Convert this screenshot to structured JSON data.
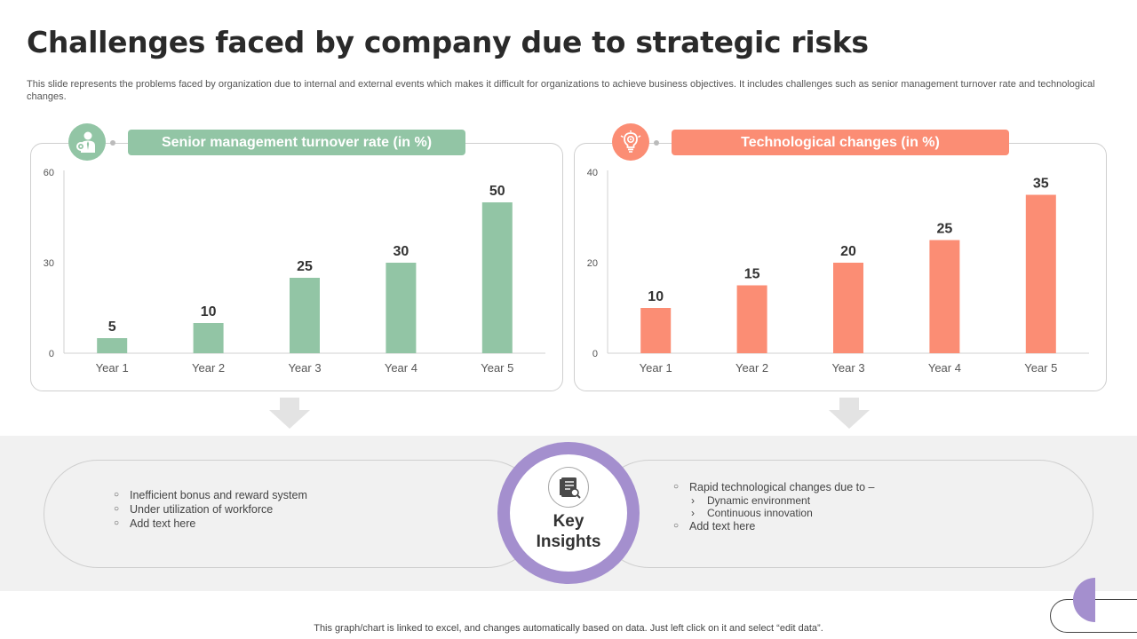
{
  "title": "Challenges faced by company due to strategic risks",
  "description": "This slide represents the problems faced by organization due to internal and external events which makes it difficult for organizations to achieve business objectives. It includes challenges such as senior management turnover rate and technological changes.",
  "colors": {
    "green": "#92c5a5",
    "orange": "#fb8d74",
    "purple": "#a48fce",
    "band": "#f1f1f1"
  },
  "left_panel": {
    "banner": "Senior management turnover rate (in %)",
    "icon": "business-person-gear-icon"
  },
  "right_panel": {
    "banner": "Technological changes (in %)",
    "icon": "lightbulb-gear-icon"
  },
  "chart_data": [
    {
      "type": "bar",
      "title": "Senior management turnover rate (in %)",
      "categories": [
        "Year 1",
        "Year 2",
        "Year 3",
        "Year 4",
        "Year 5"
      ],
      "values": [
        5,
        10,
        25,
        30,
        50
      ],
      "yticks": [
        0,
        30,
        60
      ],
      "ylim": [
        0,
        60
      ],
      "color": "#92c5a5",
      "grid": false,
      "data_labels": true
    },
    {
      "type": "bar",
      "title": "Technological changes (in %)",
      "categories": [
        "Year 1",
        "Year 2",
        "Year 3",
        "Year 4",
        "Year 5"
      ],
      "values": [
        10,
        15,
        20,
        25,
        35
      ],
      "yticks": [
        0,
        20,
        40
      ],
      "ylim": [
        0,
        40
      ],
      "color": "#fb8d74",
      "grid": false,
      "data_labels": true
    }
  ],
  "insights": {
    "center_label_line1": "Key",
    "center_label_line2": "Insights",
    "center_icon": "report-document-icon",
    "left_items": [
      "Inefficient  bonus  and reward  system",
      "Under utilization of workforce",
      "Add text here"
    ],
    "right_intro": "Rapid technological changes due to –",
    "right_sub_items": [
      "Dynamic environment",
      "Continuous innovation"
    ],
    "right_last": "Add text here"
  },
  "footer": "This graph/chart is linked to excel,  and changes automatically based on data. Just left click on it and select “edit data”."
}
